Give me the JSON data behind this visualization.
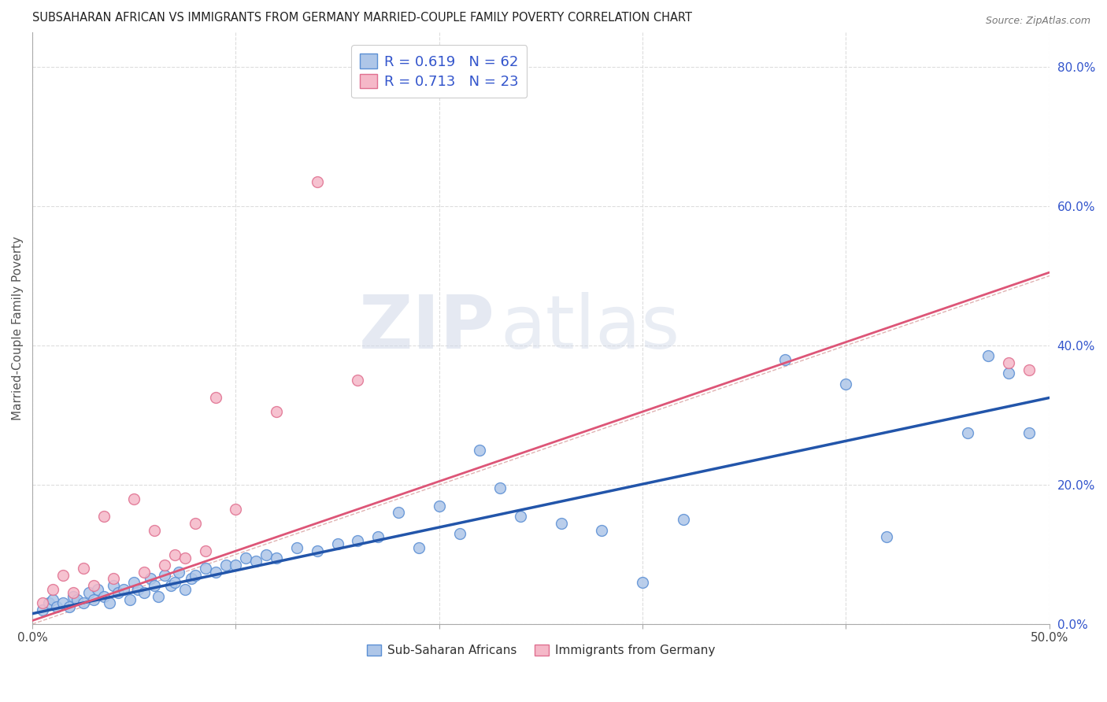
{
  "title": "SUBSAHARAN AFRICAN VS IMMIGRANTS FROM GERMANY MARRIED-COUPLE FAMILY POVERTY CORRELATION CHART",
  "source": "Source: ZipAtlas.com",
  "ylabel": "Married-Couple Family Poverty",
  "xlim": [
    0.0,
    0.5
  ],
  "ylim": [
    0.0,
    0.85
  ],
  "xticks": [
    0.0,
    0.1,
    0.2,
    0.3,
    0.4,
    0.5
  ],
  "xtick_labels": [
    "0.0%",
    "",
    "",
    "",
    "",
    "50.0%"
  ],
  "ytick_labels_right": [
    "0.0%",
    "20.0%",
    "40.0%",
    "60.0%",
    "80.0%"
  ],
  "ytick_positions_right": [
    0.0,
    0.2,
    0.4,
    0.6,
    0.8
  ],
  "legend_label1": "Sub-Saharan Africans",
  "legend_label2": "Immigrants from Germany",
  "R1": "0.619",
  "N1": "62",
  "R2": "0.713",
  "N2": "23",
  "color_blue_fill": "#aec6e8",
  "color_blue_edge": "#5b8fd4",
  "color_pink_fill": "#f5b8c8",
  "color_pink_edge": "#e07090",
  "color_trend_blue": "#2255aa",
  "color_trend_pink": "#dd5577",
  "color_text_blue": "#3355cc",
  "color_ref_line": "#ddaaaa",
  "color_grid": "#dddddd",
  "background": "#ffffff",
  "scatter_blue_x": [
    0.005,
    0.008,
    0.01,
    0.012,
    0.015,
    0.018,
    0.02,
    0.022,
    0.025,
    0.028,
    0.03,
    0.032,
    0.035,
    0.038,
    0.04,
    0.042,
    0.045,
    0.048,
    0.05,
    0.052,
    0.055,
    0.058,
    0.06,
    0.062,
    0.065,
    0.068,
    0.07,
    0.072,
    0.075,
    0.078,
    0.08,
    0.085,
    0.09,
    0.095,
    0.1,
    0.105,
    0.11,
    0.115,
    0.12,
    0.13,
    0.14,
    0.15,
    0.16,
    0.17,
    0.18,
    0.19,
    0.2,
    0.21,
    0.22,
    0.23,
    0.24,
    0.26,
    0.28,
    0.3,
    0.32,
    0.37,
    0.4,
    0.42,
    0.46,
    0.47,
    0.48,
    0.49
  ],
  "scatter_blue_y": [
    0.02,
    0.03,
    0.035,
    0.025,
    0.03,
    0.025,
    0.04,
    0.035,
    0.03,
    0.045,
    0.035,
    0.05,
    0.04,
    0.03,
    0.055,
    0.045,
    0.05,
    0.035,
    0.06,
    0.05,
    0.045,
    0.065,
    0.055,
    0.04,
    0.07,
    0.055,
    0.06,
    0.075,
    0.05,
    0.065,
    0.07,
    0.08,
    0.075,
    0.085,
    0.085,
    0.095,
    0.09,
    0.1,
    0.095,
    0.11,
    0.105,
    0.115,
    0.12,
    0.125,
    0.16,
    0.11,
    0.17,
    0.13,
    0.25,
    0.195,
    0.155,
    0.145,
    0.135,
    0.06,
    0.15,
    0.38,
    0.345,
    0.125,
    0.275,
    0.385,
    0.36,
    0.275
  ],
  "scatter_pink_x": [
    0.005,
    0.01,
    0.015,
    0.02,
    0.025,
    0.03,
    0.035,
    0.04,
    0.05,
    0.055,
    0.06,
    0.065,
    0.07,
    0.075,
    0.08,
    0.085,
    0.09,
    0.1,
    0.12,
    0.14,
    0.16,
    0.48,
    0.49
  ],
  "scatter_pink_y": [
    0.03,
    0.05,
    0.07,
    0.045,
    0.08,
    0.055,
    0.155,
    0.065,
    0.18,
    0.075,
    0.135,
    0.085,
    0.1,
    0.095,
    0.145,
    0.105,
    0.325,
    0.165,
    0.305,
    0.635,
    0.35,
    0.375,
    0.365
  ],
  "blue_trend_x": [
    0.0,
    0.5
  ],
  "blue_trend_y": [
    0.015,
    0.325
  ],
  "pink_trend_x": [
    0.0,
    0.5
  ],
  "pink_trend_y": [
    0.005,
    0.505
  ],
  "ref_line_x": [
    0.0,
    0.85
  ],
  "ref_line_y": [
    0.0,
    0.85
  ]
}
